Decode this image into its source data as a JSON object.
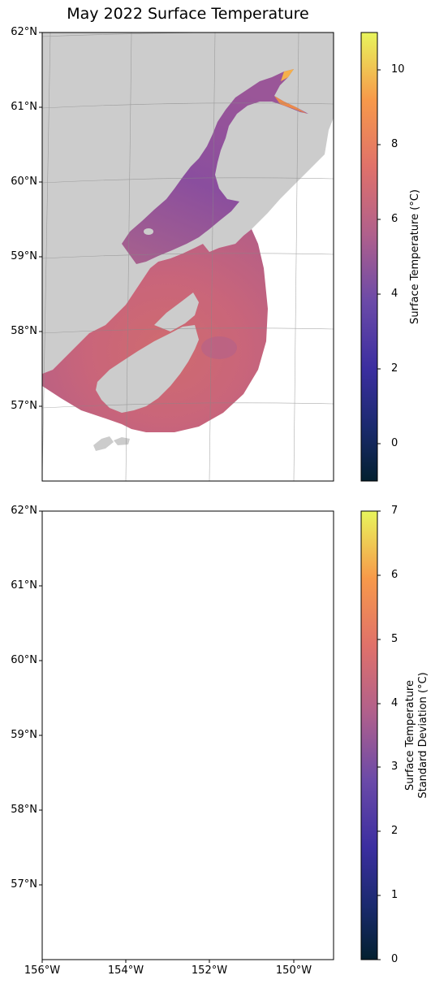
{
  "title": "May 2022 Surface Temperature",
  "lat_labels": [
    "62°N",
    "61°N",
    "60°N",
    "59°N",
    "58°N",
    "57°N"
  ],
  "lon_labels": [
    "156°W",
    "154°W",
    "152°W",
    "150°W"
  ],
  "top_map": {
    "colorbar": {
      "label": "Surface Temperature (°C)",
      "ticks": [
        "10",
        "8",
        "6",
        "4",
        "2",
        "0"
      ],
      "range": [
        -1,
        11
      ]
    }
  },
  "bottom_map": {
    "colorbar": {
      "label_line1": "Surface Temperature",
      "label_line2": "Standard Deviation (°C)",
      "ticks": [
        "7",
        "6",
        "5",
        "4",
        "3",
        "2",
        "1",
        "0"
      ],
      "range": [
        0,
        7
      ]
    }
  },
  "colors": {
    "land": "#cccccc",
    "frame": "#000000",
    "gridline": "#888888",
    "temp_dominant": "#d2706a",
    "temp_inlet": "#8a4e9e",
    "std_dominant": "#5a3aa0"
  }
}
